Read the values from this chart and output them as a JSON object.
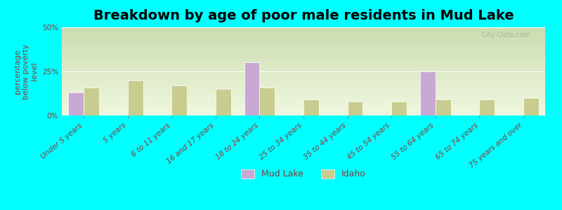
{
  "title": "Breakdown by age of poor male residents in Mud Lake",
  "ylabel": "percentage\nbelow poverty\nlevel",
  "categories": [
    "Under 5 years",
    "5 years",
    "6 to 11 years",
    "16 and 17 years",
    "18 to 24 years",
    "25 to 34 years",
    "35 to 44 years",
    "45 to 54 years",
    "55 to 64 years",
    "65 to 74 years",
    "75 years and over"
  ],
  "mud_lake": [
    13,
    0,
    0,
    0,
    30,
    0,
    0,
    0,
    25,
    0,
    0
  ],
  "idaho": [
    16,
    20,
    17,
    15,
    16,
    9,
    8,
    8,
    9,
    9,
    10
  ],
  "mud_lake_color": "#c9a8d4",
  "idaho_color": "#c8cc8e",
  "background_color": "#00ffff",
  "grad_top": "#ccddb0",
  "grad_bottom": "#f0f8e0",
  "ylim": [
    0,
    50
  ],
  "yticks": [
    0,
    25,
    50
  ],
  "yticklabels": [
    "0%",
    "25%",
    "50%"
  ],
  "bar_width": 0.35,
  "legend_labels": [
    "Mud Lake",
    "Idaho"
  ],
  "title_fontsize": 14,
  "axis_label_fontsize": 8,
  "tick_fontsize": 7.5,
  "label_color": "#8b3a3a",
  "watermark": "City-Data.com"
}
